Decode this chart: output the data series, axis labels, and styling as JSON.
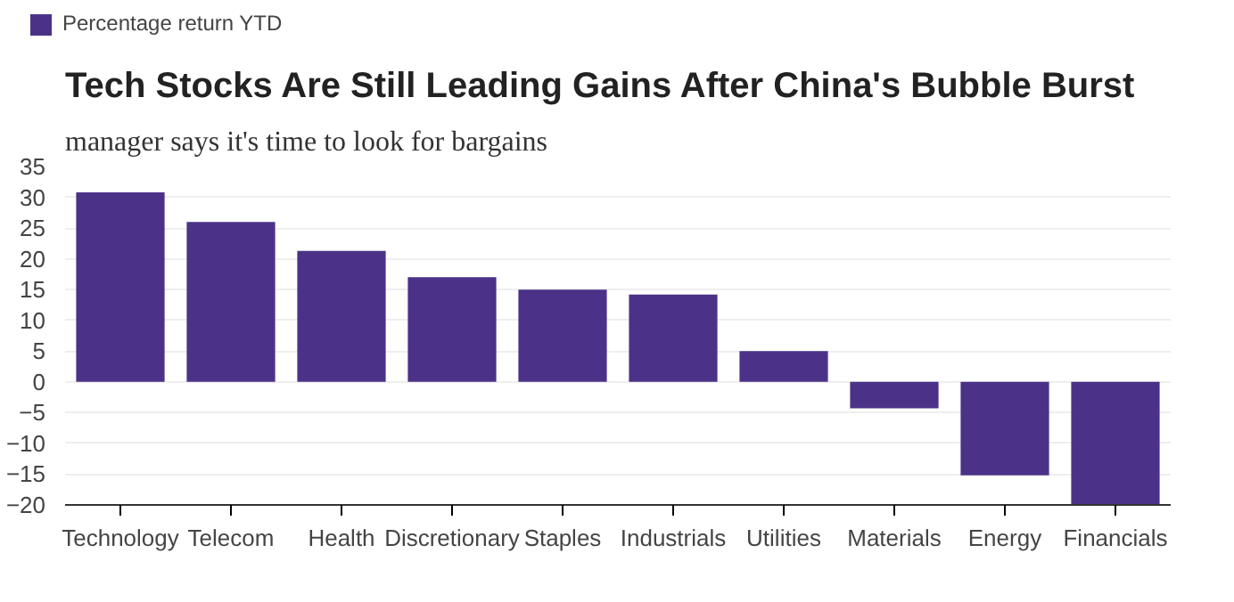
{
  "chart_data": {
    "type": "bar",
    "title": "Tech Stocks Are Still Leading Gains After China's Bubble Burst",
    "subtitle": "manager says it's time to look for bargains",
    "categories": [
      "Technology",
      "Telecom",
      "Health",
      "Discretionary",
      "Staples",
      "Industrials",
      "Utilities",
      "Materials",
      "Energy",
      "Financials"
    ],
    "series": [
      {
        "name": "Percentage return YTD",
        "color": "#4b3288",
        "values": [
          30.8,
          26,
          21.3,
          17,
          15,
          14.2,
          5,
          -4.3,
          -15.2,
          -20
        ]
      }
    ],
    "ylim": [
      -20,
      35
    ],
    "yticks": [
      -20,
      -15,
      -10,
      -5,
      0,
      5,
      10,
      15,
      20,
      25,
      30,
      35
    ],
    "grid": "y",
    "legend": "top left"
  }
}
